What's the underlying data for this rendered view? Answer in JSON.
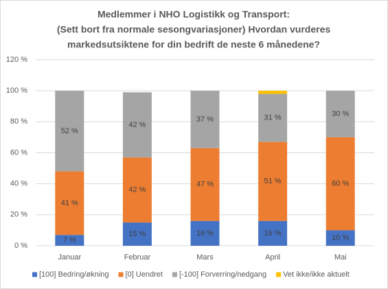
{
  "chart_data": {
    "type": "stacked-bar",
    "title": [
      "Medlemmer i NHO Logistikk og Transport:",
      "(Sett bort fra normale sesongvariasjoner) Hvordan vurderes",
      "markedsutsiktene for din bedrift de neste 6 månedene?"
    ],
    "categories": [
      "Januar",
      "Februar",
      "Mars",
      "April",
      "Mai"
    ],
    "series": [
      {
        "name": "[100] Bedring/økning",
        "color": "#4472c4",
        "values": [
          7,
          15,
          16,
          16,
          10
        ],
        "value_labels": [
          "7 %",
          "15 %",
          "16 %",
          "16 %",
          "10 %"
        ]
      },
      {
        "name": "[0] Uendret",
        "color": "#ed7d31",
        "values": [
          41,
          42,
          47,
          51,
          60
        ],
        "value_labels": [
          "41 %",
          "42 %",
          "47 %",
          "51 %",
          "60 %"
        ]
      },
      {
        "name": "[-100] Forverring/nedgang",
        "color": "#a5a5a5",
        "values": [
          52,
          42,
          37,
          31,
          30
        ],
        "value_labels": [
          "52 %",
          "42 %",
          "37 %",
          "31 %",
          "30 %"
        ]
      },
      {
        "name": "Vet ikke/ikke aktuelt",
        "color": "#ffc000",
        "values": [
          0,
          0,
          0,
          2,
          0
        ]
      }
    ],
    "ylim": [
      0,
      120
    ],
    "yticks": [
      {
        "value": 0,
        "label": "0 %"
      },
      {
        "value": 20,
        "label": "20 %"
      },
      {
        "value": 40,
        "label": "40 %"
      },
      {
        "value": 60,
        "label": "60 %"
      },
      {
        "value": 80,
        "label": "80 %"
      },
      {
        "value": 100,
        "label": "100 %"
      },
      {
        "value": 120,
        "label": "120 %"
      }
    ],
    "grid": true,
    "legend": "bottom"
  }
}
